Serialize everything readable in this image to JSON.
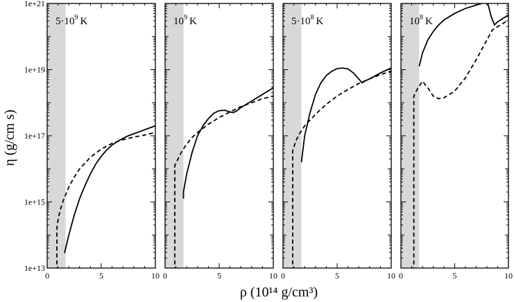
{
  "chart_data": {
    "type": "line",
    "figure_ylabel": "η (g/cm s)",
    "figure_xlabel": "ρ (10¹⁴ g/cm³)",
    "xlim": [
      0,
      10
    ],
    "ylim_log10": [
      13,
      21
    ],
    "x_ticks": [
      0,
      5,
      10
    ],
    "x_tick_labels": [
      "0",
      "5",
      "10"
    ],
    "y_tick_exponents": [
      13,
      15,
      17,
      19,
      21
    ],
    "y_tick_labels": [
      "1e+13",
      "1e+15",
      "1e+17",
      "1e+19",
      "1e+21"
    ],
    "shaded_band_x": [
      0,
      1.7
    ],
    "panels": [
      {
        "label_base": "5·10",
        "label_exp": "9",
        "label_unit": "K",
        "series": [
          {
            "name": "solid",
            "style": "solid",
            "x": [
              1.6,
              2.0,
              2.5,
              3.0,
              3.5,
              4.0,
              4.5,
              5.0,
              5.5,
              6.0,
              6.5,
              7.0,
              7.5,
              8.0,
              8.5,
              9.0,
              9.5,
              10.0
            ],
            "log10_y": [
              13.45,
              14.0,
              14.6,
              15.1,
              15.5,
              15.85,
              16.15,
              16.38,
              16.57,
              16.72,
              16.83,
              16.92,
              17.0,
              17.06,
              17.12,
              17.18,
              17.24,
              17.3
            ]
          },
          {
            "name": "dashed",
            "style": "dashed",
            "x": [
              0.9,
              0.9,
              1.0,
              1.2,
              1.5,
              2.0,
              2.5,
              3.0,
              4.0,
              5.0,
              6.0,
              7.0,
              8.0,
              9.0,
              10.0
            ],
            "log10_y": [
              12.9,
              14.2,
              14.45,
              14.75,
              15.05,
              15.45,
              15.75,
              16.0,
              16.35,
              16.6,
              16.77,
              16.88,
              16.96,
              17.02,
              17.1
            ]
          }
        ]
      },
      {
        "label_base": "10",
        "label_exp": "9",
        "label_unit": "K",
        "series": [
          {
            "name": "solid",
            "style": "solid",
            "x": [
              1.7,
              1.7,
              2.0,
              2.5,
              3.0,
              3.5,
              4.0,
              4.5,
              5.0,
              5.5,
              6.0,
              6.3,
              6.6,
              7.0,
              8.0,
              9.0,
              10.0
            ],
            "log10_y": [
              15.1,
              15.3,
              15.85,
              16.5,
              17.0,
              17.3,
              17.52,
              17.68,
              17.76,
              17.77,
              17.72,
              17.7,
              17.75,
              17.85,
              18.05,
              18.25,
              18.45
            ]
          },
          {
            "name": "dashed",
            "style": "dashed",
            "x": [
              0.9,
              0.9,
              1.2,
              1.5,
              2.0,
              2.5,
              3.0,
              4.0,
              5.0,
              6.0,
              7.0,
              8.0,
              9.0,
              10.0
            ],
            "log10_y": [
              12.9,
              16.1,
              16.3,
              16.5,
              16.75,
              16.95,
              17.1,
              17.35,
              17.55,
              17.72,
              17.88,
              18.0,
              18.12,
              18.2
            ]
          }
        ]
      },
      {
        "label_base": "5·10",
        "label_exp": "8",
        "label_unit": "K",
        "series": [
          {
            "name": "solid",
            "style": "solid",
            "x": [
              1.7,
              2.0,
              2.5,
              3.0,
              3.5,
              4.0,
              4.5,
              5.0,
              5.5,
              6.0,
              6.5,
              7.0,
              7.3,
              7.6,
              8.0,
              9.0,
              10.0
            ],
            "log10_y": [
              16.2,
              17.0,
              17.7,
              18.25,
              18.6,
              18.82,
              18.95,
              19.03,
              19.05,
              19.02,
              18.9,
              18.72,
              18.6,
              18.66,
              18.72,
              18.9,
              19.05
            ]
          },
          {
            "name": "dashed",
            "style": "dashed",
            "x": [
              0.9,
              0.9,
              1.2,
              1.5,
              2.0,
              3.0,
              4.0,
              5.0,
              6.0,
              7.0,
              8.0,
              9.0,
              10.0
            ],
            "log10_y": [
              12.9,
              16.55,
              16.85,
              17.05,
              17.3,
              17.65,
              17.95,
              18.2,
              18.4,
              18.58,
              18.72,
              18.85,
              18.95
            ]
          }
        ]
      },
      {
        "label_base": "10",
        "label_exp": "8",
        "label_unit": "K",
        "series": [
          {
            "name": "solid",
            "style": "solid",
            "x": [
              1.7,
              2.0,
              2.5,
              3.0,
              3.5,
              4.0,
              5.0,
              6.0,
              7.0,
              7.5,
              7.8,
              8.1,
              8.4,
              8.7,
              9.0,
              9.5,
              10.0
            ],
            "log10_y": [
              19.1,
              19.5,
              19.9,
              20.15,
              20.35,
              20.5,
              20.7,
              20.85,
              20.95,
              21.0,
              21.03,
              20.98,
              20.6,
              20.35,
              20.45,
              20.55,
              20.65
            ]
          },
          {
            "name": "dashed",
            "style": "dashed",
            "x": [
              1.2,
              1.2,
              1.5,
              2.0,
              2.5,
              3.0,
              3.5,
              4.0,
              5.0,
              6.0,
              7.0,
              8.0,
              8.5,
              9.0,
              9.5,
              10.0
            ],
            "log10_y": [
              12.9,
              18.2,
              18.4,
              18.65,
              18.45,
              18.2,
              18.12,
              18.15,
              18.35,
              18.75,
              19.3,
              19.9,
              20.2,
              20.3,
              20.4,
              20.5
            ]
          }
        ]
      }
    ]
  }
}
